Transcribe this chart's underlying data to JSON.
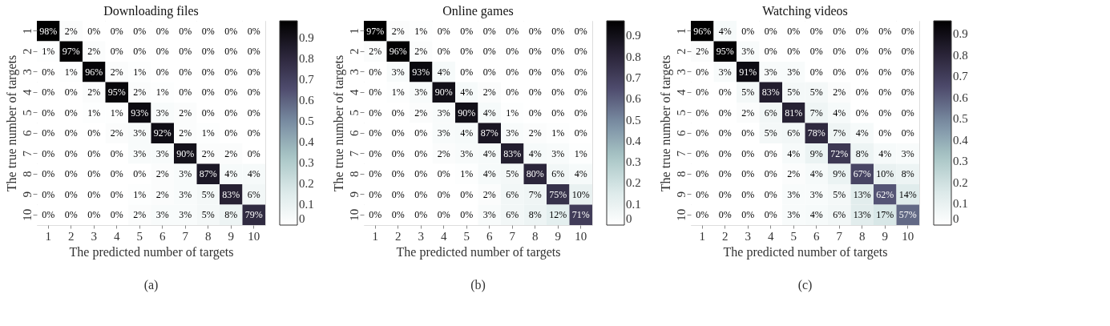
{
  "chart_data": [
    {
      "type": "heatmap",
      "title": "Downloading files",
      "xlabel": "The predicted number of targets",
      "ylabel": "The true number of targets",
      "annotations": [
        "(a)"
      ],
      "categories": [
        "1",
        "2",
        "3",
        "4",
        "5",
        "6",
        "7",
        "8",
        "9",
        "10"
      ],
      "y_categories": [
        "1",
        "2",
        "3",
        "4",
        "5",
        "6",
        "7",
        "8",
        "9",
        "10"
      ],
      "clim": [
        0,
        0.98
      ],
      "cticks": [
        0,
        0.1,
        0.2,
        0.3,
        0.4,
        0.5,
        0.6,
        0.7,
        0.8,
        0.9
      ],
      "cells": [
        [
          0.98,
          0.02,
          0,
          0,
          0,
          0,
          0,
          0,
          0,
          0
        ],
        [
          0.01,
          0.97,
          0.02,
          0,
          0,
          0,
          0,
          0,
          0,
          0
        ],
        [
          0,
          0.01,
          0.96,
          0.02,
          0.01,
          0,
          0,
          0,
          0,
          0
        ],
        [
          0,
          0,
          0.02,
          0.95,
          0.02,
          0.01,
          0,
          0,
          0,
          0
        ],
        [
          0,
          0,
          0.01,
          0.01,
          0.93,
          0.03,
          0.02,
          0,
          0,
          0
        ],
        [
          0,
          0,
          0,
          0.02,
          0.03,
          0.92,
          0.02,
          0.01,
          0,
          0
        ],
        [
          0,
          0,
          0,
          0,
          0.03,
          0.03,
          0.9,
          0.02,
          0.02,
          0
        ],
        [
          0,
          0,
          0,
          0,
          0,
          0.02,
          0.03,
          0.87,
          0.04,
          0.04
        ],
        [
          0,
          0,
          0,
          0,
          0.01,
          0.02,
          0.03,
          0.05,
          0.83,
          0.06
        ],
        [
          0,
          0,
          0,
          0,
          0.02,
          0.03,
          0.03,
          0.05,
          0.08,
          0.79
        ]
      ],
      "cell_labels": [
        [
          "98%",
          "2%",
          "0%",
          "0%",
          "0%",
          "0%",
          "0%",
          "0%",
          "0%",
          "0%"
        ],
        [
          "1%",
          "97%",
          "2%",
          "0%",
          "0%",
          "0%",
          "0%",
          "0%",
          "0%",
          "0%"
        ],
        [
          "0%",
          "1%",
          "96%",
          "2%",
          "1%",
          "0%",
          "0%",
          "0%",
          "0%",
          "0%"
        ],
        [
          "0%",
          "0%",
          "2%",
          "95%",
          "2%",
          "1%",
          "0%",
          "0%",
          "0%",
          "0%"
        ],
        [
          "0%",
          "0%",
          "1%",
          "1%",
          "93%",
          "3%",
          "2%",
          "0%",
          "0%",
          "0%"
        ],
        [
          "0%",
          "0%",
          "0%",
          "2%",
          "3%",
          "92%",
          "2%",
          "1%",
          "0%",
          "0%"
        ],
        [
          "0%",
          "0%",
          "0%",
          "0%",
          "3%",
          "3%",
          "90%",
          "2%",
          "2%",
          "0%"
        ],
        [
          "0%",
          "0%",
          "0%",
          "0%",
          "0%",
          "2%",
          "3%",
          "87%",
          "4%",
          "4%"
        ],
        [
          "0%",
          "0%",
          "0%",
          "0%",
          "1%",
          "2%",
          "3%",
          "5%",
          "83%",
          "6%"
        ],
        [
          "0%",
          "0%",
          "0%",
          "0%",
          "2%",
          "3%",
          "3%",
          "5%",
          "8%",
          "79%"
        ]
      ]
    },
    {
      "type": "heatmap",
      "title": "Online games",
      "xlabel": "The predicted number of targets",
      "ylabel": "The true number of targets",
      "annotations": [
        "(b)"
      ],
      "categories": [
        "1",
        "2",
        "3",
        "4",
        "5",
        "6",
        "7",
        "8",
        "9",
        "10"
      ],
      "y_categories": [
        "1",
        "2",
        "3",
        "4",
        "5",
        "6",
        "7",
        "8",
        "9",
        "10"
      ],
      "clim": [
        0,
        0.97
      ],
      "cticks": [
        0,
        0.1,
        0.2,
        0.3,
        0.4,
        0.5,
        0.6,
        0.7,
        0.8,
        0.9
      ],
      "cells": [
        [
          0.97,
          0.02,
          0.01,
          0,
          0,
          0,
          0,
          0,
          0,
          0
        ],
        [
          0.02,
          0.96,
          0.02,
          0,
          0,
          0,
          0,
          0,
          0,
          0
        ],
        [
          0,
          0.03,
          0.93,
          0.04,
          0,
          0,
          0,
          0,
          0,
          0
        ],
        [
          0,
          0.01,
          0.03,
          0.9,
          0.04,
          0.02,
          0,
          0,
          0,
          0
        ],
        [
          0,
          0,
          0.02,
          0.03,
          0.9,
          0.04,
          0.01,
          0,
          0,
          0
        ],
        [
          0,
          0,
          0,
          0.03,
          0.04,
          0.87,
          0.03,
          0.02,
          0.01,
          0
        ],
        [
          0,
          0,
          0,
          0.02,
          0.03,
          0.04,
          0.83,
          0.04,
          0.03,
          0.01
        ],
        [
          0,
          0,
          0,
          0,
          0.01,
          0.04,
          0.05,
          0.8,
          0.06,
          0.04
        ],
        [
          0,
          0,
          0,
          0,
          0,
          0.02,
          0.06,
          0.07,
          0.75,
          0.1
        ],
        [
          0,
          0,
          0,
          0,
          0,
          0.03,
          0.06,
          0.08,
          0.12,
          0.71
        ]
      ],
      "cell_labels": [
        [
          "97%",
          "2%",
          "1%",
          "0%",
          "0%",
          "0%",
          "0%",
          "0%",
          "0%",
          "0%"
        ],
        [
          "2%",
          "96%",
          "2%",
          "0%",
          "0%",
          "0%",
          "0%",
          "0%",
          "0%",
          "0%"
        ],
        [
          "0%",
          "3%",
          "93%",
          "4%",
          "0%",
          "0%",
          "0%",
          "0%",
          "0%",
          "0%"
        ],
        [
          "0%",
          "1%",
          "3%",
          "90%",
          "4%",
          "2%",
          "0%",
          "0%",
          "0%",
          "0%"
        ],
        [
          "0%",
          "0%",
          "2%",
          "3%",
          "90%",
          "4%",
          "1%",
          "0%",
          "0%",
          "0%"
        ],
        [
          "0%",
          "0%",
          "0%",
          "3%",
          "4%",
          "87%",
          "3%",
          "2%",
          "1%",
          "0%"
        ],
        [
          "0%",
          "0%",
          "0%",
          "2%",
          "3%",
          "4%",
          "83%",
          "4%",
          "3%",
          "1%"
        ],
        [
          "0%",
          "0%",
          "0%",
          "0%",
          "1%",
          "4%",
          "5%",
          "80%",
          "6%",
          "4%"
        ],
        [
          "0%",
          "0%",
          "0%",
          "0%",
          "0%",
          "2%",
          "6%",
          "7%",
          "75%",
          "10%"
        ],
        [
          "0%",
          "0%",
          "0%",
          "0%",
          "0%",
          "3%",
          "6%",
          "8%",
          "12%",
          "71%"
        ]
      ]
    },
    {
      "type": "heatmap",
      "title": "Watching videos",
      "xlabel": "The predicted number of targets",
      "ylabel": "The true number of targets",
      "annotations": [
        "(c)"
      ],
      "categories": [
        "1",
        "2",
        "3",
        "4",
        "5",
        "6",
        "7",
        "8",
        "9",
        "10"
      ],
      "y_categories": [
        "1",
        "2",
        "3",
        "4",
        "5",
        "6",
        "7",
        "8",
        "9",
        "10"
      ],
      "clim": [
        0,
        0.96
      ],
      "cticks": [
        0,
        0.1,
        0.2,
        0.3,
        0.4,
        0.5,
        0.6,
        0.7,
        0.8,
        0.9
      ],
      "cells": [
        [
          0.96,
          0.04,
          0,
          0,
          0,
          0,
          0,
          0,
          0,
          0
        ],
        [
          0.02,
          0.95,
          0.03,
          0,
          0,
          0,
          0,
          0,
          0,
          0
        ],
        [
          0,
          0.03,
          0.91,
          0.03,
          0.03,
          0,
          0,
          0,
          0,
          0
        ],
        [
          0,
          0,
          0.05,
          0.83,
          0.05,
          0.05,
          0.02,
          0,
          0,
          0
        ],
        [
          0,
          0,
          0.02,
          0.06,
          0.81,
          0.07,
          0.04,
          0,
          0,
          0
        ],
        [
          0,
          0,
          0,
          0.05,
          0.06,
          0.78,
          0.07,
          0.04,
          0,
          0
        ],
        [
          0,
          0,
          0,
          0,
          0.04,
          0.09,
          0.72,
          0.08,
          0.04,
          0.03
        ],
        [
          0,
          0,
          0,
          0,
          0.02,
          0.04,
          0.09,
          0.67,
          0.1,
          0.08
        ],
        [
          0,
          0,
          0,
          0,
          0.03,
          0.03,
          0.05,
          0.13,
          0.62,
          0.14
        ],
        [
          0,
          0,
          0,
          0,
          0.03,
          0.04,
          0.06,
          0.13,
          0.17,
          0.57
        ]
      ],
      "cell_labels": [
        [
          "96%",
          "4%",
          "0%",
          "0%",
          "0%",
          "0%",
          "0%",
          "0%",
          "0%",
          "0%"
        ],
        [
          "2%",
          "95%",
          "3%",
          "0%",
          "0%",
          "0%",
          "0%",
          "0%",
          "0%",
          "0%"
        ],
        [
          "0%",
          "3%",
          "91%",
          "3%",
          "3%",
          "0%",
          "0%",
          "0%",
          "0%",
          "0%"
        ],
        [
          "0%",
          "0%",
          "5%",
          "83%",
          "5%",
          "5%",
          "2%",
          "0%",
          "0%",
          "0%"
        ],
        [
          "0%",
          "0%",
          "2%",
          "6%",
          "81%",
          "7%",
          "4%",
          "0%",
          "0%",
          "0%"
        ],
        [
          "0%",
          "0%",
          "0%",
          "5%",
          "6%",
          "78%",
          "7%",
          "4%",
          "0%",
          "0%"
        ],
        [
          "0%",
          "0%",
          "0%",
          "0%",
          "4%",
          "9%",
          "72%",
          "8%",
          "4%",
          "3%"
        ],
        [
          "0%",
          "0%",
          "0%",
          "0%",
          "2%",
          "4%",
          "9%",
          "67%",
          "10%",
          "8%"
        ],
        [
          "0%",
          "0%",
          "0%",
          "0%",
          "3%",
          "3%",
          "5%",
          "13%",
          "62%",
          "14%"
        ],
        [
          "0%",
          "0%",
          "0%",
          "0%",
          "3%",
          "4%",
          "6%",
          "13%",
          "17%",
          "57%"
        ]
      ]
    }
  ]
}
